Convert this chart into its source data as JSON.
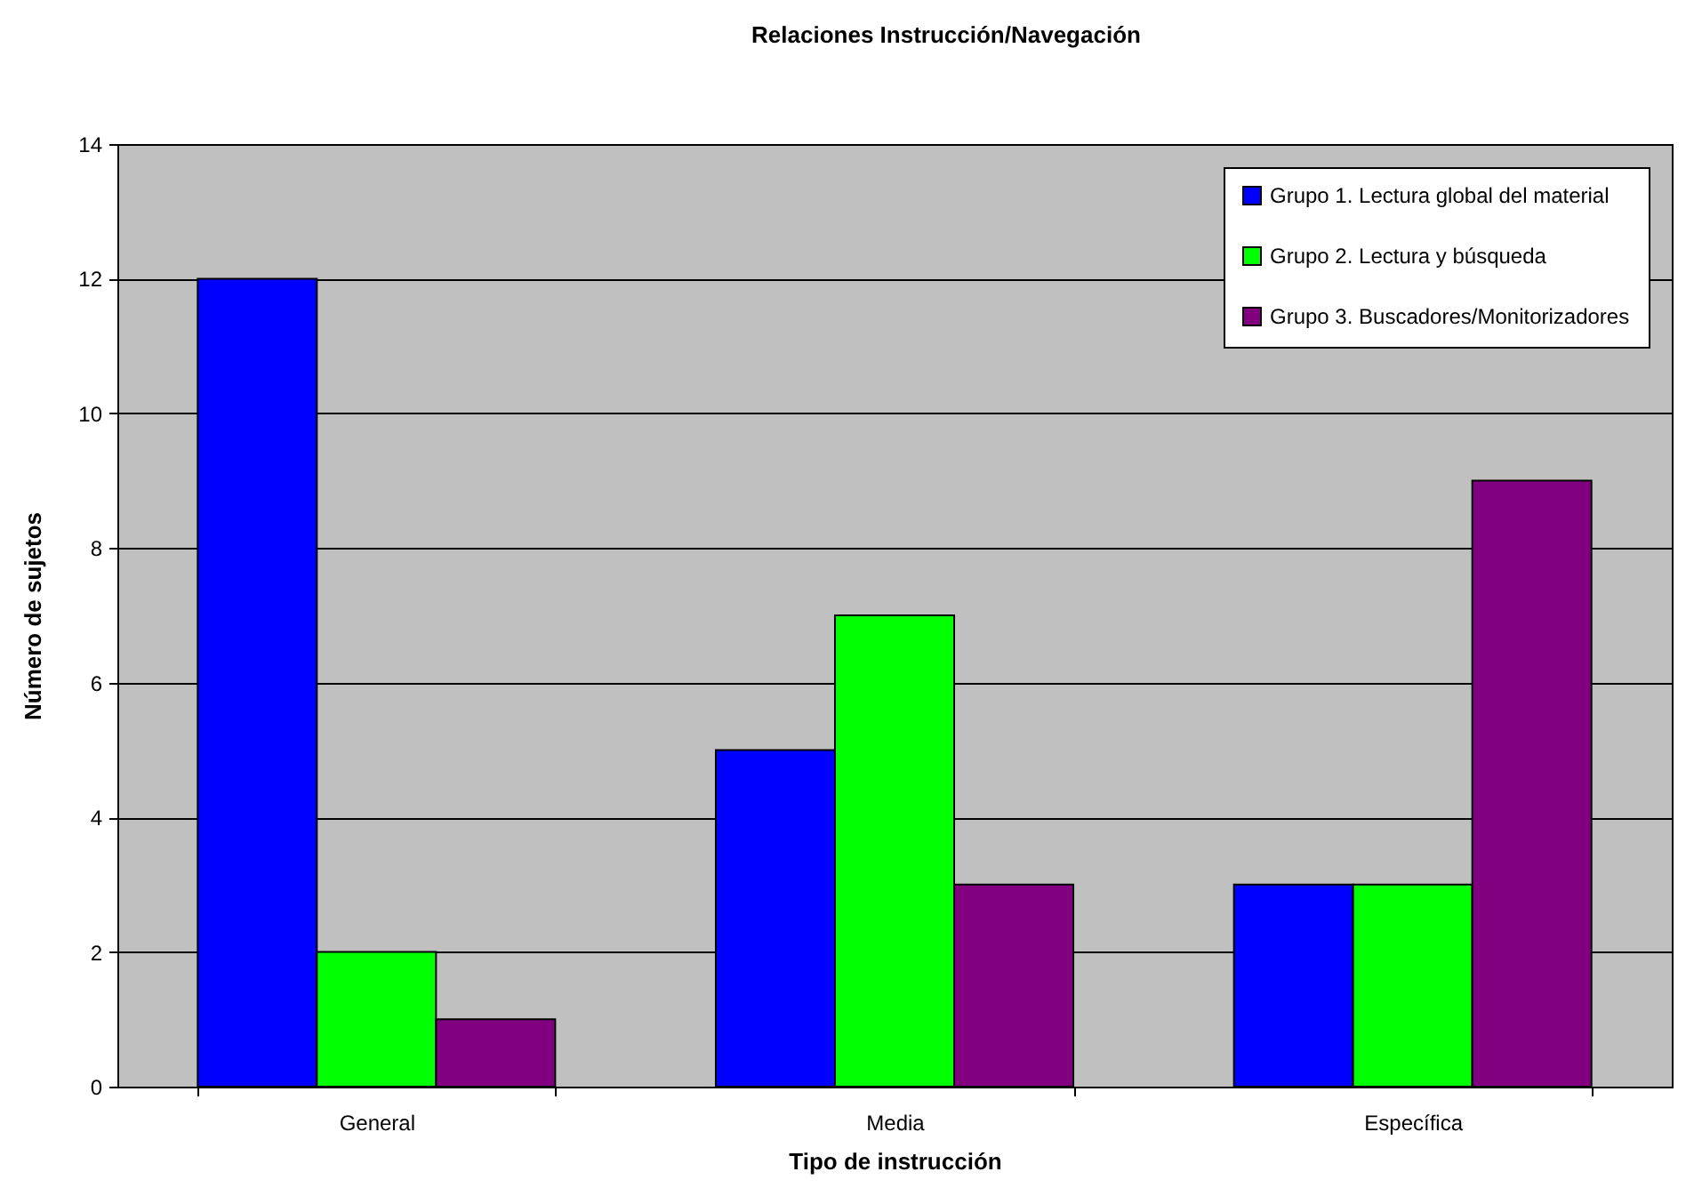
{
  "chart_data": {
    "type": "bar",
    "title": "Relaciones Instrucción/Navegación",
    "xlabel": "Tipo de instrucción",
    "ylabel": "Número de sujetos",
    "categories": [
      "General",
      "Media",
      "Específica"
    ],
    "series": [
      {
        "name": "Grupo 1. Lectura global del material",
        "color": "#0000ff",
        "values": [
          12,
          5,
          3
        ]
      },
      {
        "name": "Grupo 2. Lectura y búsqueda",
        "color": "#00ff00",
        "values": [
          2,
          7,
          3
        ]
      },
      {
        "name": "Grupo 3. Buscadores/Monitorizadores",
        "color": "#800080",
        "values": [
          1,
          3,
          9
        ]
      }
    ],
    "ylim": [
      0,
      14
    ],
    "yticks": [
      0,
      2,
      4,
      6,
      8,
      10,
      12,
      14
    ],
    "grid": "y",
    "legend": "top right"
  }
}
